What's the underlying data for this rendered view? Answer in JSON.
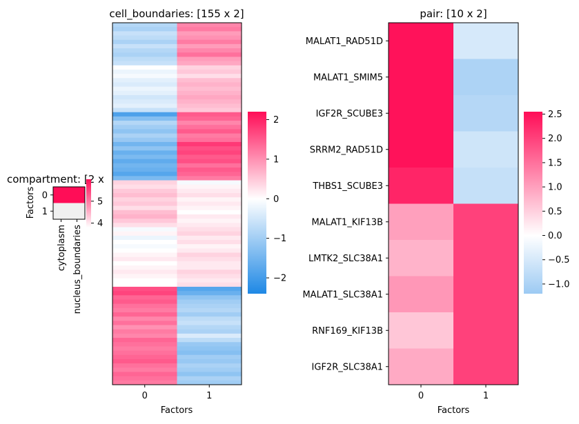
{
  "chart_data": [
    {
      "type": "heatmap",
      "title": "cell_boundaries: [155 x 2]",
      "xlabel": "Factors",
      "ylabel": "",
      "x_tick_labels": [
        "0",
        "1"
      ],
      "y_tick_labels": [],
      "colorbar": {
        "min": -2.4,
        "max": 2.2,
        "ticks": [
          -2,
          -1,
          0,
          1,
          2
        ]
      },
      "note_rows": "155 rows shown as bands",
      "column_0_bands": [
        -0.8,
        -0.9,
        -0.6,
        -0.7,
        -0.9,
        -0.6,
        -0.8,
        -0.9,
        -0.7,
        -0.6,
        0.0,
        -0.2,
        -0.1,
        -0.3,
        -0.4,
        -0.2,
        -0.3,
        -0.5,
        -0.4,
        -0.3,
        -0.6,
        -1.9,
        -1.3,
        -0.8,
        -1.0,
        -1.2,
        -0.9,
        -1.1,
        -1.5,
        -1.2,
        -1.6,
        -1.4,
        -1.7,
        -1.5,
        -1.6,
        -1.8,
        -1.4,
        0.4,
        0.3,
        0.5,
        0.6,
        0.4,
        0.5,
        0.3,
        0.6,
        0.7,
        0.5,
        0.3,
        -0.1,
        0.1,
        -0.2,
        0.0,
        -0.1,
        0.0,
        0.1,
        0.2,
        0.0,
        0.1,
        0.2,
        0.1,
        0.0,
        0.0,
        1.6,
        1.7,
        1.4,
        1.5,
        1.3,
        1.2,
        1.4,
        1.1,
        1.3,
        1.0,
        1.2,
        1.1,
        1.4,
        1.3,
        1.2,
        1.3,
        1.4,
        1.5,
        1.3,
        1.2,
        1.4,
        1.3,
        1.2
      ],
      "column_1_bands": [
        1.1,
        1.2,
        0.9,
        1.0,
        1.2,
        0.9,
        1.1,
        1.3,
        0.9,
        0.8,
        0.4,
        0.5,
        0.3,
        0.6,
        0.7,
        0.6,
        0.7,
        0.8,
        0.7,
        0.6,
        0.5,
        1.5,
        1.4,
        1.1,
        1.3,
        1.5,
        1.2,
        1.3,
        1.8,
        1.6,
        1.7,
        1.5,
        1.6,
        1.3,
        1.5,
        1.4,
        1.2,
        -0.1,
        0.1,
        0.2,
        0.3,
        0.1,
        0.2,
        0.1,
        0.0,
        0.2,
        0.1,
        0.2,
        0.3,
        0.4,
        0.2,
        0.3,
        0.1,
        0.2,
        0.4,
        0.3,
        0.2,
        0.2,
        0.4,
        0.3,
        0.2,
        0.3,
        -1.8,
        -1.6,
        -1.2,
        -1.0,
        -0.9,
        -0.8,
        -1.0,
        -0.7,
        -0.6,
        -0.8,
        -0.9,
        -0.4,
        -0.7,
        -1.1,
        -1.2,
        -1.3,
        -1.0,
        -1.1,
        -0.9,
        -1.0,
        -1.2,
        -0.9,
        -1.0
      ]
    },
    {
      "type": "heatmap",
      "title": "compartment: [2 x",
      "xlabel": "",
      "ylabel": "Factors",
      "x_tick_labels": [
        "cytoplasm",
        "nucleus_boundaries"
      ],
      "y_tick_labels": [
        "0",
        "1"
      ],
      "colorbar": {
        "min": 3.8,
        "max": 6.0,
        "ticks": [
          4,
          5
        ]
      },
      "values": [
        [
          6.0,
          6.0
        ],
        [
          3.8,
          3.8
        ]
      ]
    },
    {
      "type": "heatmap",
      "title": "pair: [10 x 2]",
      "xlabel": "Factors",
      "ylabel": "",
      "x_tick_labels": [
        "0",
        "1"
      ],
      "y_tick_labels": [
        "MALAT1_RAD51D",
        "MALAT1_SMIM5",
        "IGF2R_SCUBE3",
        "SRRM2_RAD51D",
        "THBS1_SCUBE3",
        "MALAT1_KIF13B",
        "LMTK2_SLC38A1",
        "MALAT1_SLC38A1",
        "RNF169_KIF13B",
        "IGF2R_SLC38A1"
      ],
      "colorbar": {
        "min": -1.2,
        "max": 2.55,
        "ticks": [
          -1.0,
          -0.5,
          0.0,
          0.5,
          1.0,
          1.5,
          2.0,
          2.5
        ]
      },
      "colorbar_tick_labels": [
        "−1.0",
        "−0.5",
        "0.0",
        "0.5",
        "1.0",
        "1.5",
        "2.0",
        "2.5"
      ],
      "values": [
        [
          2.5,
          -0.5
        ],
        [
          2.5,
          -1.0
        ],
        [
          2.5,
          -0.9
        ],
        [
          2.5,
          -0.6
        ],
        [
          2.3,
          -0.7
        ],
        [
          1.0,
          2.0
        ],
        [
          0.8,
          2.0
        ],
        [
          1.1,
          2.0
        ],
        [
          0.6,
          2.0
        ],
        [
          0.9,
          2.0
        ]
      ]
    }
  ],
  "colorbar_tick_labels_cb1": [
    "−2",
    "−1",
    "0",
    "1",
    "2"
  ]
}
